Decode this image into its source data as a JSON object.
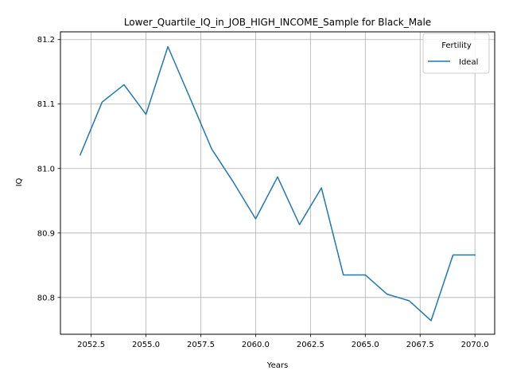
{
  "chart_data": {
    "type": "line",
    "title": "Lower_Quartile_IQ_in_JOB_HIGH_INCOME_Sample for Black_Male",
    "xlabel": "Years",
    "ylabel": "IQ",
    "xlim": [
      2051.1,
      2070.9
    ],
    "ylim": [
      80.743,
      81.212
    ],
    "xticks": [
      2052.5,
      2055.0,
      2057.5,
      2060.0,
      2062.5,
      2065.0,
      2067.5,
      2070.0
    ],
    "xtick_labels": [
      "2052.5",
      "2055.0",
      "2057.5",
      "2060.0",
      "2062.5",
      "2065.0",
      "2067.5",
      "2070.0"
    ],
    "yticks": [
      80.8,
      80.9,
      81.0,
      81.1,
      81.2
    ],
    "ytick_labels": [
      "80.8",
      "80.9",
      "81.0",
      "81.1",
      "81.2"
    ],
    "grid": true,
    "legend": {
      "title": "Fertility",
      "placement": "top-right"
    },
    "series": [
      {
        "name": "Ideal",
        "color": "#1f77b4",
        "x": [
          2052,
          2053,
          2054,
          2055,
          2056,
          2057,
          2058,
          2059,
          2060,
          2061,
          2062,
          2063,
          2064,
          2065,
          2066,
          2067,
          2068,
          2069,
          2070
        ],
        "y": [
          81.021,
          81.103,
          81.13,
          81.084,
          81.189,
          81.11,
          81.03,
          80.978,
          80.922,
          80.987,
          80.913,
          80.97,
          80.835,
          80.835,
          80.805,
          80.795,
          80.764,
          80.866,
          80.866
        ]
      }
    ]
  }
}
